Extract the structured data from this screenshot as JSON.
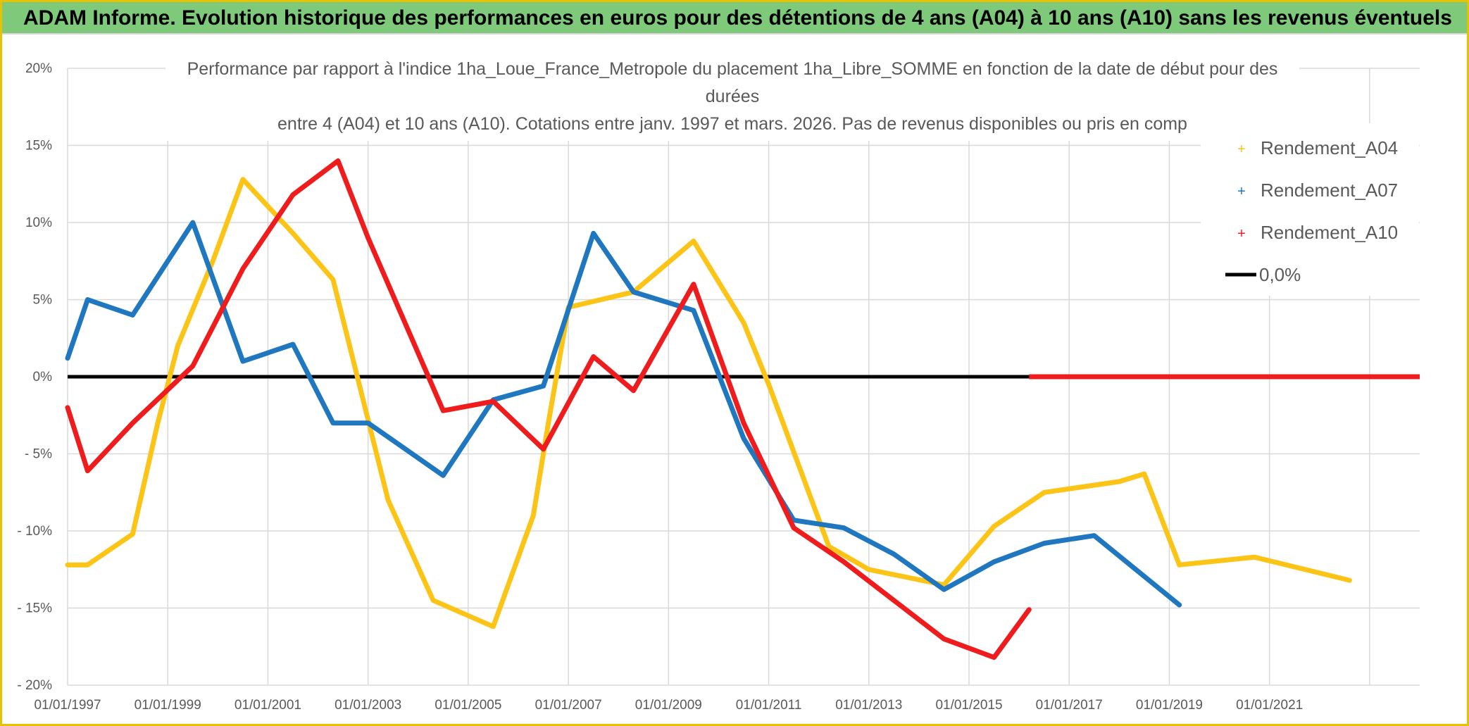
{
  "header": {
    "title": "ADAM Informe. Evolution historique des performances en euros pour des détentions de 4 ans (A04) à 10 ans (A10) sans les revenus éventuels"
  },
  "colors": {
    "header_bg": "#7ec97a",
    "border": "#e6c200",
    "A04": "#fbc417",
    "A07": "#1f77c0",
    "A10": "#ee1c1c",
    "zero": "#000000",
    "grid": "#d9d9d9",
    "text": "#595959"
  },
  "chart_data": {
    "type": "line",
    "title": [
      "Performance par rapport à l'indice 1ha_Loue_France_Metropole  du placement 1ha_Libre_SOMME en fonction de la date de début pour des",
      "durées",
      "entre 4 (A04) et 10 ans (A10). Cotations entre janv. 1997 et mars. 2026. Pas de revenus disponibles ou pris en comp"
    ],
    "xlabel": "",
    "ylabel": "",
    "xlim": [
      1997.0,
      2024.0
    ],
    "ylim": [
      -20,
      20
    ],
    "grid": true,
    "legend_position": "top-right",
    "y_ticks": [
      {
        "value": 20,
        "label": "20%"
      },
      {
        "value": 15,
        "label": "15%"
      },
      {
        "value": 10,
        "label": "10%"
      },
      {
        "value": 5,
        "label": "5%"
      },
      {
        "value": 0,
        "label": "0%"
      },
      {
        "value": -5,
        "label": "- 5%"
      },
      {
        "value": -10,
        "label": "- 10%"
      },
      {
        "value": -15,
        "label": "- 15%"
      },
      {
        "value": -20,
        "label": "- 20%"
      }
    ],
    "x_ticks": [
      {
        "value": 1997,
        "label": "01/01/1997"
      },
      {
        "value": 1999,
        "label": "01/01/1999"
      },
      {
        "value": 2001,
        "label": "01/01/2001"
      },
      {
        "value": 2003,
        "label": "01/01/2003"
      },
      {
        "value": 2005,
        "label": "01/01/2005"
      },
      {
        "value": 2007,
        "label": "01/01/2007"
      },
      {
        "value": 2009,
        "label": "01/01/2009"
      },
      {
        "value": 2011,
        "label": "01/01/2011"
      },
      {
        "value": 2013,
        "label": "01/01/2013"
      },
      {
        "value": 2015,
        "label": "01/01/2015"
      },
      {
        "value": 2017,
        "label": "01/01/2017"
      },
      {
        "value": 2019,
        "label": "01/01/2019"
      },
      {
        "value": 2021,
        "label": "01/01/2021"
      }
    ],
    "x_gridlines": [
      1997,
      1999,
      2001,
      2003,
      2005,
      2007,
      2009,
      2011,
      2013,
      2015,
      2017,
      2019,
      2021,
      2023
    ],
    "series": [
      {
        "name": "Rendement_A04",
        "key": "A04",
        "marker": "+",
        "points": [
          [
            1997.0,
            -12.2
          ],
          [
            1997.4,
            -12.2
          ],
          [
            1998.3,
            -10.2
          ],
          [
            1998.8,
            -3.0
          ],
          [
            1999.2,
            2.0
          ],
          [
            1999.9,
            7.5
          ],
          [
            2000.5,
            12.8
          ],
          [
            2001.5,
            9.3
          ],
          [
            2002.3,
            6.3
          ],
          [
            2002.9,
            -1.5
          ],
          [
            2003.4,
            -8.0
          ],
          [
            2004.3,
            -14.5
          ],
          [
            2005.5,
            -16.2
          ],
          [
            2006.3,
            -9.0
          ],
          [
            2006.6,
            -3.0
          ],
          [
            2007.0,
            4.5
          ],
          [
            2008.3,
            5.5
          ],
          [
            2009.5,
            8.8
          ],
          [
            2010.5,
            3.5
          ],
          [
            2011.0,
            -0.5
          ],
          [
            2012.2,
            -11.0
          ],
          [
            2013.0,
            -12.5
          ],
          [
            2014.5,
            -13.5
          ],
          [
            2015.5,
            -9.7
          ],
          [
            2016.5,
            -7.5
          ],
          [
            2018.0,
            -6.8
          ],
          [
            2018.5,
            -6.3
          ],
          [
            2019.2,
            -12.2
          ],
          [
            2020.7,
            -11.7
          ],
          [
            2022.6,
            -13.2
          ]
        ]
      },
      {
        "name": "Rendement_A07",
        "key": "A07",
        "marker": "+",
        "points": [
          [
            1997.0,
            1.2
          ],
          [
            1997.4,
            5.0
          ],
          [
            1998.3,
            4.0
          ],
          [
            1999.5,
            10.0
          ],
          [
            2000.5,
            1.0
          ],
          [
            2001.5,
            2.1
          ],
          [
            2002.3,
            -3.0
          ],
          [
            2003.0,
            -3.0
          ],
          [
            2004.5,
            -6.4
          ],
          [
            2005.5,
            -1.5
          ],
          [
            2006.5,
            -0.6
          ],
          [
            2007.5,
            9.3
          ],
          [
            2008.3,
            5.5
          ],
          [
            2009.5,
            4.3
          ],
          [
            2010.5,
            -4.0
          ],
          [
            2011.5,
            -9.3
          ],
          [
            2012.5,
            -9.8
          ],
          [
            2013.5,
            -11.5
          ],
          [
            2014.5,
            -13.8
          ],
          [
            2015.5,
            -12.0
          ],
          [
            2016.5,
            -10.8
          ],
          [
            2017.5,
            -10.3
          ],
          [
            2019.2,
            -14.8
          ]
        ]
      },
      {
        "name": "Rendement_A10",
        "key": "A10",
        "marker": "+",
        "points": [
          [
            1997.0,
            -2.0
          ],
          [
            1997.4,
            -6.1
          ],
          [
            1998.3,
            -3.0
          ],
          [
            1999.5,
            0.7
          ],
          [
            2000.5,
            7.0
          ],
          [
            2001.5,
            11.8
          ],
          [
            2002.4,
            14.0
          ],
          [
            2003.0,
            9.0
          ],
          [
            2004.5,
            -2.2
          ],
          [
            2005.5,
            -1.6
          ],
          [
            2006.5,
            -4.7
          ],
          [
            2007.5,
            1.3
          ],
          [
            2008.3,
            -0.9
          ],
          [
            2009.5,
            6.0
          ],
          [
            2010.5,
            -3.0
          ],
          [
            2011.5,
            -9.8
          ],
          [
            2012.5,
            -12.0
          ],
          [
            2013.5,
            -14.5
          ],
          [
            2014.5,
            -17.0
          ],
          [
            2015.5,
            -18.2
          ],
          [
            2016.2,
            -15.1
          ]
        ]
      }
    ],
    "flat_tail": {
      "series": "Rendement_A10",
      "from": 2016.2,
      "to": 2024.0,
      "value": 0
    },
    "reference_line": {
      "name": "0,0%",
      "value": 0
    }
  }
}
